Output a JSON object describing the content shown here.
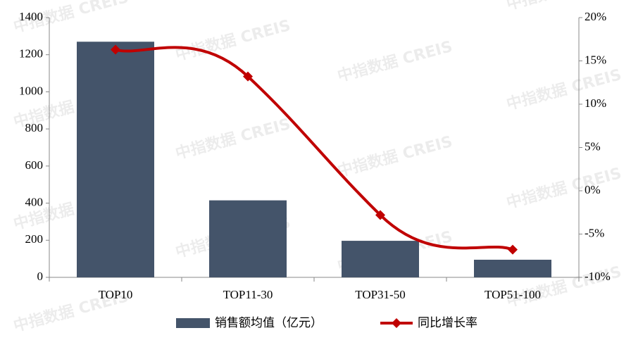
{
  "chart_data": {
    "type": "bar-line",
    "watermark": "中指数据 CREIS",
    "categories": [
      "TOP10",
      "TOP11-30",
      "TOP31-50",
      "TOP51-100"
    ],
    "series": [
      {
        "name": "销售额均值（亿元）",
        "type": "bar",
        "color": "#44546a",
        "values": [
          1270,
          415,
          197,
          95
        ]
      },
      {
        "name": "同比增长率",
        "type": "line",
        "axis": "y2",
        "color": "#c00000",
        "values": [
          16.3,
          13.2,
          -2.8,
          -6.8
        ]
      }
    ],
    "ylim": [
      0,
      1400
    ],
    "yticks": [
      0,
      200,
      400,
      600,
      800,
      1000,
      1200,
      1400
    ],
    "y2lim": [
      -10,
      20
    ],
    "y2ticks": [
      {
        "value": -10,
        "label": "-10%"
      },
      {
        "value": -5,
        "label": "-5%"
      },
      {
        "value": 0,
        "label": "0%"
      },
      {
        "value": 5,
        "label": "5%"
      },
      {
        "value": 10,
        "label": "10%"
      },
      {
        "value": 15,
        "label": "15%"
      },
      {
        "value": 20,
        "label": "20%"
      }
    ],
    "legend": "bottom"
  }
}
